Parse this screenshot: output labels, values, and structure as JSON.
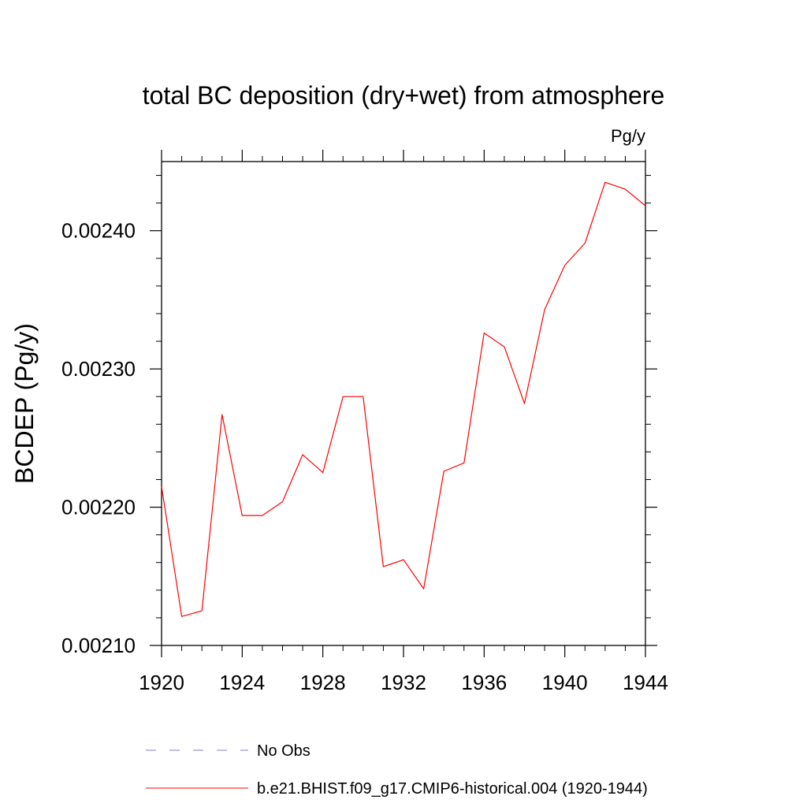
{
  "chart_data": {
    "type": "line",
    "title": "total BC deposition (dry+wet) from atmosphere",
    "units_label": "Pg/y",
    "ylabel": "BCDEP  (Pg/y)",
    "xlabel": "",
    "xlim": [
      1920,
      1944
    ],
    "ylim": [
      0.0021,
      0.00245
    ],
    "x_ticks": [
      1920,
      1924,
      1928,
      1932,
      1936,
      1940,
      1944
    ],
    "x_tick_labels": [
      "1920",
      "1924",
      "1928",
      "1932",
      "1936",
      "1940",
      "1944"
    ],
    "y_ticks": [
      0.0021,
      0.0022,
      0.0023,
      0.0024
    ],
    "y_tick_labels": [
      "0.00210",
      "0.00220",
      "0.00230",
      "0.00240"
    ],
    "grid": false,
    "legend_position": "bottom",
    "series": [
      {
        "name": "b.e21.BHIST.f09_g17.CMIP6-historical.004 (1920-1944)",
        "color": "#ff0000",
        "style": "solid",
        "x": [
          1920,
          1921,
          1922,
          1923,
          1924,
          1925,
          1926,
          1927,
          1928,
          1929,
          1930,
          1931,
          1932,
          1933,
          1934,
          1935,
          1936,
          1937,
          1938,
          1939,
          1940,
          1941,
          1942,
          1943,
          1944
        ],
        "y": [
          0.002215,
          0.002121,
          0.002125,
          0.002267,
          0.002194,
          0.002194,
          0.002204,
          0.002238,
          0.002225,
          0.00228,
          0.00228,
          0.002157,
          0.002162,
          0.002141,
          0.002226,
          0.002232,
          0.002326,
          0.002316,
          0.002275,
          0.002343,
          0.002375,
          0.002391,
          0.002435,
          0.00243,
          0.002418
        ]
      }
    ],
    "legend": [
      {
        "label": "No Obs",
        "color": "#8080c0",
        "style": "dashed"
      },
      {
        "label": "b.e21.BHIST.f09_g17.CMIP6-historical.004 (1920-1944)",
        "color": "#ff0000",
        "style": "solid"
      }
    ]
  }
}
